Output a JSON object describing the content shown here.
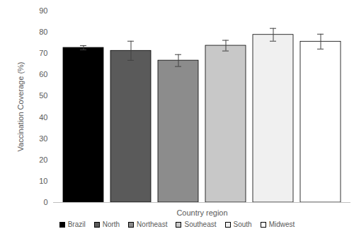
{
  "chart_data": {
    "type": "bar",
    "categories": [
      "Brazil",
      "North",
      "Northeast",
      "Southeast",
      "South",
      "Midwest"
    ],
    "values": [
      72.7,
      71.3,
      66.7,
      73.7,
      78.8,
      75.6
    ],
    "error": [
      1.0,
      4.5,
      2.8,
      2.5,
      3.0,
      3.5
    ],
    "colors": [
      "#000000",
      "#5a5a5a",
      "#8c8c8c",
      "#c8c8c8",
      "#f0f0f0",
      "#ffffff"
    ],
    "x_label": "Country region",
    "y_label": "Vaccination Coverage (%)",
    "ylim": [
      0,
      90
    ],
    "yticks": [
      0,
      10,
      20,
      30,
      40,
      50,
      60,
      70,
      80,
      90
    ],
    "grid": false,
    "legend": "bottom",
    "tick_labels": "y"
  }
}
